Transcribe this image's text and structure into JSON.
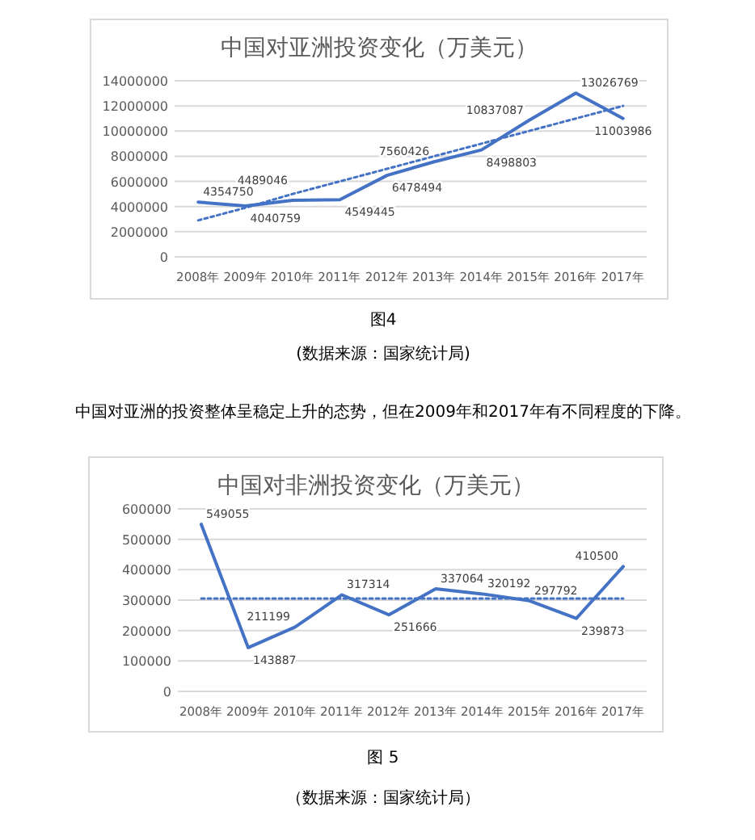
{
  "chart_data": [
    {
      "type": "line",
      "title": "中国对亚洲投资变化（万美元）",
      "categories": [
        "2008年",
        "2009年",
        "2010年",
        "2011年",
        "2012年",
        "2013年",
        "2014年",
        "2015年",
        "2016年",
        "2017年"
      ],
      "series": [
        {
          "color": "#4472c4",
          "values": [
            4354750,
            4040759,
            4489046,
            4549445,
            6478494,
            7560426,
            8498803,
            10837087,
            13026769,
            11003986
          ],
          "value_labels": [
            "4354750",
            "4040759",
            "4489046",
            "4549445",
            "6478494",
            "7560426",
            "8498803",
            "10837087",
            "13026769",
            "11003986"
          ]
        },
        {
          "color": "#4472c4",
          "line_style": "dotted",
          "values": [
            2900000,
            3900000,
            5000000,
            6000000,
            7000000,
            8000000,
            9000000,
            10000000,
            11000000,
            12000000
          ]
        }
      ],
      "ylim": [
        0,
        14000000
      ],
      "yticks": [
        0,
        2000000,
        4000000,
        6000000,
        8000000,
        10000000,
        12000000,
        14000000
      ],
      "grid": "y",
      "annotations": [
        "图4",
        "(数据来源：国家统计局)",
        "中国对亚洲的投资整体呈稳定上升的态势，但在2009年和2017年有不同程度的下降。"
      ]
    },
    {
      "type": "line",
      "title": "中国对非洲投资变化（万美元）",
      "categories": [
        "2008年",
        "2009年",
        "2010年",
        "2011年",
        "2012年",
        "2013年",
        "2014年",
        "2015年",
        "2016年",
        "2017年"
      ],
      "series": [
        {
          "color": "#4472c4",
          "values": [
            549055,
            143887,
            211199,
            317314,
            251666,
            337064,
            320192,
            297792,
            239873,
            410500
          ],
          "value_labels": [
            "549055",
            "143887",
            "211199",
            "317314",
            "251666",
            "337064",
            "320192",
            "297792",
            "239873",
            "410500"
          ]
        },
        {
          "color": "#4472c4",
          "line_style": "dotted",
          "values": [
            305000,
            305000,
            305000,
            305000,
            305000,
            305000,
            305000,
            305000,
            305000,
            305000
          ]
        }
      ],
      "ylim": [
        0,
        600000
      ],
      "yticks": [
        0,
        100000,
        200000,
        300000,
        400000,
        500000,
        600000
      ],
      "grid": "y",
      "annotations": [
        "图 5",
        "（数据来源：国家统计局）"
      ]
    }
  ]
}
